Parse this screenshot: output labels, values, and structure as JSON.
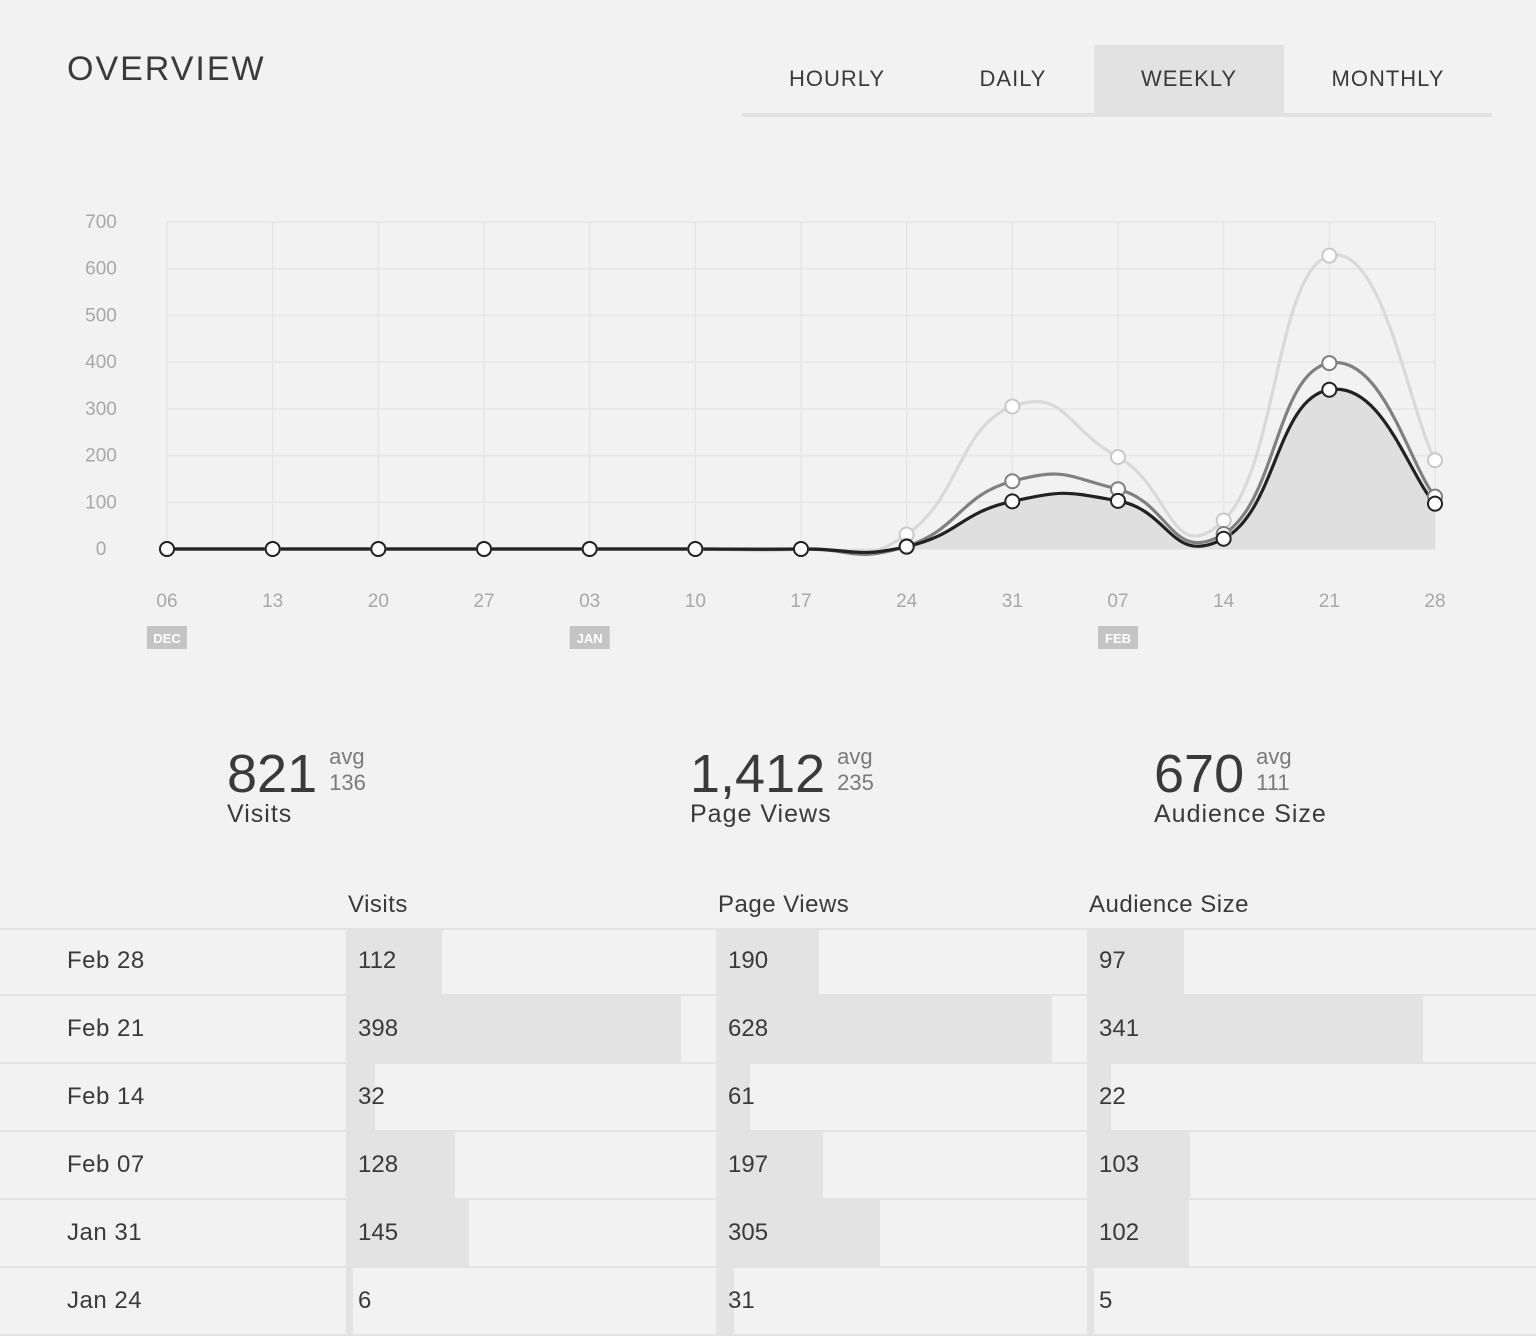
{
  "header": {
    "title": "OVERVIEW",
    "tabs": [
      {
        "label": "HOURLY",
        "active": false
      },
      {
        "label": "DAILY",
        "active": false
      },
      {
        "label": "WEEKLY",
        "active": true
      },
      {
        "label": "MONTHLY",
        "active": false
      }
    ]
  },
  "chart_data": {
    "type": "line",
    "x": [
      "06",
      "13",
      "20",
      "27",
      "03",
      "10",
      "17",
      "24",
      "31",
      "07",
      "14",
      "21",
      "28"
    ],
    "month_markers": [
      {
        "label": "DEC",
        "at": "06"
      },
      {
        "label": "JAN",
        "at": "03"
      },
      {
        "label": "FEB",
        "at": "07"
      }
    ],
    "yticks": [
      0,
      100,
      200,
      300,
      400,
      500,
      600,
      700
    ],
    "ylim": [
      0,
      700
    ],
    "grid": true,
    "series": [
      {
        "color": "#d9d9d9",
        "values": [
          0,
          0,
          0,
          0,
          0,
          0,
          0,
          31,
          305,
          197,
          61,
          628,
          190
        ]
      },
      {
        "color": "#808080",
        "values": [
          0,
          0,
          0,
          0,
          0,
          0,
          0,
          6,
          145,
          128,
          32,
          398,
          112
        ]
      },
      {
        "color": "#222222",
        "filled": true,
        "values": [
          0,
          0,
          0,
          0,
          0,
          0,
          0,
          5,
          102,
          103,
          22,
          341,
          97
        ]
      }
    ]
  },
  "stats": [
    {
      "value": "821",
      "avg_label": "avg",
      "avg": "136",
      "label": "Visits"
    },
    {
      "value": "1,412",
      "avg_label": "avg",
      "avg": "235",
      "label": "Page Views"
    },
    {
      "value": "670",
      "avg_label": "avg",
      "avg": "111",
      "label": "Audience Size"
    }
  ],
  "table": {
    "columns": [
      "Visits",
      "Page Views",
      "Audience Size"
    ],
    "rows": [
      {
        "date": "Feb 28",
        "visits": 112,
        "page_views": 190,
        "audience": 97
      },
      {
        "date": "Feb 21",
        "visits": 398,
        "page_views": 628,
        "audience": 341
      },
      {
        "date": "Feb 14",
        "visits": 32,
        "page_views": 61,
        "audience": 22
      },
      {
        "date": "Feb 07",
        "visits": 128,
        "page_views": 197,
        "audience": 103
      },
      {
        "date": "Jan 31",
        "visits": 145,
        "page_views": 305,
        "audience": 102
      },
      {
        "date": "Jan 24",
        "visits": 6,
        "page_views": 31,
        "audience": 5
      }
    ]
  }
}
